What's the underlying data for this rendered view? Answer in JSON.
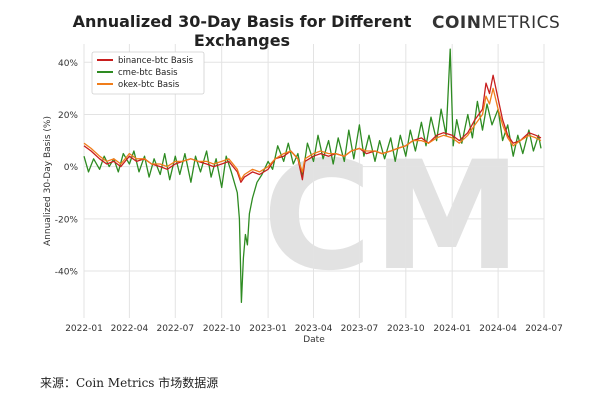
{
  "header": {
    "title": "Annualized 30-Day Basis for Different Exchanges",
    "brand_bold": "COIN",
    "brand_light": "METRICS",
    "watermark": "CM"
  },
  "source_note": "来源：Coin Metrics 市场数据源",
  "chart_data": {
    "type": "line",
    "title": "Annualized 30-Day Basis for Different Exchanges",
    "xlabel": "Date",
    "ylabel": "Annualized 30-Day Basis (%)",
    "xlim": [
      "2022-01-01",
      "2024-07-01"
    ],
    "ylim": [
      -58,
      47
    ],
    "x_ticks": [
      "2022-01",
      "2022-04",
      "2022-07",
      "2022-10",
      "2023-01",
      "2023-04",
      "2023-07",
      "2023-10",
      "2024-01",
      "2024-04",
      "2024-07"
    ],
    "y_ticks": [
      -40,
      -20,
      0,
      20,
      40
    ],
    "y_tick_labels": [
      "-40%",
      "-20%",
      "0%",
      "20%",
      "40%"
    ],
    "grid": true,
    "legend_position": "top-left",
    "series": [
      {
        "name": "binance-btc Basis",
        "color": "#c81e1e",
        "points": [
          [
            "2022-01-01",
            8
          ],
          [
            "2022-01-15",
            6
          ],
          [
            "2022-02-01",
            3
          ],
          [
            "2022-02-15",
            1
          ],
          [
            "2022-03-01",
            2
          ],
          [
            "2022-03-15",
            0
          ],
          [
            "2022-04-01",
            4
          ],
          [
            "2022-04-15",
            2
          ],
          [
            "2022-05-01",
            3
          ],
          [
            "2022-05-15",
            1
          ],
          [
            "2022-06-01",
            0
          ],
          [
            "2022-06-15",
            -1
          ],
          [
            "2022-07-01",
            1
          ],
          [
            "2022-07-15",
            2
          ],
          [
            "2022-08-01",
            3
          ],
          [
            "2022-08-15",
            2
          ],
          [
            "2022-09-01",
            1
          ],
          [
            "2022-09-15",
            0
          ],
          [
            "2022-10-01",
            1
          ],
          [
            "2022-10-15",
            2
          ],
          [
            "2022-11-01",
            -2
          ],
          [
            "2022-11-08",
            -6
          ],
          [
            "2022-11-15",
            -4
          ],
          [
            "2022-12-01",
            -2
          ],
          [
            "2022-12-15",
            -3
          ],
          [
            "2023-01-01",
            -1
          ],
          [
            "2023-01-15",
            3
          ],
          [
            "2023-02-01",
            4
          ],
          [
            "2023-02-15",
            6
          ],
          [
            "2023-03-01",
            3
          ],
          [
            "2023-03-10",
            -5
          ],
          [
            "2023-03-15",
            2
          ],
          [
            "2023-04-01",
            4
          ],
          [
            "2023-04-15",
            5
          ],
          [
            "2023-05-01",
            4
          ],
          [
            "2023-05-15",
            5
          ],
          [
            "2023-06-01",
            4
          ],
          [
            "2023-06-15",
            6
          ],
          [
            "2023-07-01",
            7
          ],
          [
            "2023-07-15",
            5
          ],
          [
            "2023-08-01",
            6
          ],
          [
            "2023-08-15",
            5
          ],
          [
            "2023-09-01",
            6
          ],
          [
            "2023-09-15",
            7
          ],
          [
            "2023-10-01",
            8
          ],
          [
            "2023-10-15",
            10
          ],
          [
            "2023-11-01",
            11
          ],
          [
            "2023-11-15",
            9
          ],
          [
            "2023-12-01",
            12
          ],
          [
            "2023-12-15",
            13
          ],
          [
            "2024-01-01",
            12
          ],
          [
            "2024-01-15",
            10
          ],
          [
            "2024-02-01",
            13
          ],
          [
            "2024-02-15",
            18
          ],
          [
            "2024-03-01",
            22
          ],
          [
            "2024-03-08",
            32
          ],
          [
            "2024-03-15",
            28
          ],
          [
            "2024-03-22",
            35
          ],
          [
            "2024-04-01",
            26
          ],
          [
            "2024-04-10",
            18
          ],
          [
            "2024-04-20",
            12
          ],
          [
            "2024-05-01",
            9
          ],
          [
            "2024-05-15",
            10
          ],
          [
            "2024-06-01",
            13
          ],
          [
            "2024-06-15",
            12
          ],
          [
            "2024-06-25",
            11
          ]
        ]
      },
      {
        "name": "cme-btc Basis",
        "color": "#2e8b22",
        "points": [
          [
            "2022-01-01",
            4
          ],
          [
            "2022-01-10",
            -2
          ],
          [
            "2022-01-20",
            3
          ],
          [
            "2022-02-01",
            -1
          ],
          [
            "2022-02-10",
            4
          ],
          [
            "2022-02-20",
            0
          ],
          [
            "2022-03-01",
            3
          ],
          [
            "2022-03-10",
            -2
          ],
          [
            "2022-03-20",
            5
          ],
          [
            "2022-04-01",
            1
          ],
          [
            "2022-04-10",
            6
          ],
          [
            "2022-04-20",
            -2
          ],
          [
            "2022-05-01",
            4
          ],
          [
            "2022-05-10",
            -4
          ],
          [
            "2022-05-20",
            3
          ],
          [
            "2022-06-01",
            -3
          ],
          [
            "2022-06-10",
            5
          ],
          [
            "2022-06-20",
            -5
          ],
          [
            "2022-07-01",
            4
          ],
          [
            "2022-07-10",
            -3
          ],
          [
            "2022-07-20",
            5
          ],
          [
            "2022-08-01",
            -6
          ],
          [
            "2022-08-10",
            4
          ],
          [
            "2022-08-20",
            -2
          ],
          [
            "2022-09-01",
            6
          ],
          [
            "2022-09-10",
            -4
          ],
          [
            "2022-09-20",
            3
          ],
          [
            "2022-10-01",
            -8
          ],
          [
            "2022-10-10",
            4
          ],
          [
            "2022-10-20",
            -2
          ],
          [
            "2022-11-01",
            -10
          ],
          [
            "2022-11-05",
            -20
          ],
          [
            "2022-11-09",
            -52
          ],
          [
            "2022-11-13",
            -35
          ],
          [
            "2022-11-17",
            -26
          ],
          [
            "2022-11-21",
            -30
          ],
          [
            "2022-11-25",
            -18
          ],
          [
            "2022-12-01",
            -12
          ],
          [
            "2022-12-10",
            -6
          ],
          [
            "2022-12-20",
            -3
          ],
          [
            "2023-01-01",
            2
          ],
          [
            "2023-01-10",
            -1
          ],
          [
            "2023-01-20",
            8
          ],
          [
            "2023-02-01",
            2
          ],
          [
            "2023-02-10",
            9
          ],
          [
            "2023-02-20",
            1
          ],
          [
            "2023-03-01",
            5
          ],
          [
            "2023-03-10",
            -4
          ],
          [
            "2023-03-20",
            9
          ],
          [
            "2023-04-01",
            2
          ],
          [
            "2023-04-10",
            12
          ],
          [
            "2023-04-20",
            3
          ],
          [
            "2023-05-01",
            10
          ],
          [
            "2023-05-10",
            1
          ],
          [
            "2023-05-20",
            11
          ],
          [
            "2023-06-01",
            2
          ],
          [
            "2023-06-10",
            14
          ],
          [
            "2023-06-20",
            3
          ],
          [
            "2023-07-01",
            16
          ],
          [
            "2023-07-10",
            4
          ],
          [
            "2023-07-20",
            12
          ],
          [
            "2023-08-01",
            2
          ],
          [
            "2023-08-10",
            10
          ],
          [
            "2023-08-20",
            3
          ],
          [
            "2023-09-01",
            11
          ],
          [
            "2023-09-10",
            2
          ],
          [
            "2023-09-20",
            12
          ],
          [
            "2023-10-01",
            4
          ],
          [
            "2023-10-10",
            14
          ],
          [
            "2023-10-20",
            6
          ],
          [
            "2023-11-01",
            17
          ],
          [
            "2023-11-10",
            8
          ],
          [
            "2023-11-20",
            19
          ],
          [
            "2023-12-01",
            10
          ],
          [
            "2023-12-10",
            22
          ],
          [
            "2023-12-20",
            12
          ],
          [
            "2023-12-28",
            45
          ],
          [
            "2024-01-03",
            8
          ],
          [
            "2024-01-10",
            18
          ],
          [
            "2024-01-20",
            9
          ],
          [
            "2024-02-01",
            20
          ],
          [
            "2024-02-10",
            11
          ],
          [
            "2024-02-20",
            25
          ],
          [
            "2024-03-01",
            14
          ],
          [
            "2024-03-10",
            24
          ],
          [
            "2024-03-20",
            16
          ],
          [
            "2024-04-01",
            22
          ],
          [
            "2024-04-10",
            10
          ],
          [
            "2024-04-20",
            16
          ],
          [
            "2024-05-01",
            4
          ],
          [
            "2024-05-10",
            12
          ],
          [
            "2024-05-20",
            5
          ],
          [
            "2024-06-01",
            14
          ],
          [
            "2024-06-10",
            6
          ],
          [
            "2024-06-20",
            12
          ],
          [
            "2024-06-25",
            7
          ]
        ]
      },
      {
        "name": "okex-btc Basis",
        "color": "#f07d1a",
        "points": [
          [
            "2022-01-01",
            9
          ],
          [
            "2022-01-15",
            7
          ],
          [
            "2022-02-01",
            4
          ],
          [
            "2022-02-15",
            2
          ],
          [
            "2022-03-01",
            3
          ],
          [
            "2022-03-15",
            1
          ],
          [
            "2022-04-01",
            5
          ],
          [
            "2022-04-15",
            3
          ],
          [
            "2022-05-01",
            3
          ],
          [
            "2022-05-15",
            1
          ],
          [
            "2022-06-01",
            1
          ],
          [
            "2022-06-15",
            0
          ],
          [
            "2022-07-01",
            2
          ],
          [
            "2022-07-15",
            2
          ],
          [
            "2022-08-01",
            3
          ],
          [
            "2022-08-15",
            2
          ],
          [
            "2022-09-01",
            2
          ],
          [
            "2022-09-15",
            1
          ],
          [
            "2022-10-01",
            2
          ],
          [
            "2022-10-15",
            3
          ],
          [
            "2022-11-01",
            -1
          ],
          [
            "2022-11-08",
            -5
          ],
          [
            "2022-11-15",
            -3
          ],
          [
            "2022-12-01",
            -1
          ],
          [
            "2022-12-15",
            -2
          ],
          [
            "2023-01-01",
            0
          ],
          [
            "2023-01-15",
            3
          ],
          [
            "2023-02-01",
            5
          ],
          [
            "2023-02-15",
            6
          ],
          [
            "2023-03-01",
            3
          ],
          [
            "2023-03-10",
            -2
          ],
          [
            "2023-03-15",
            3
          ],
          [
            "2023-04-01",
            5
          ],
          [
            "2023-04-15",
            6
          ],
          [
            "2023-05-01",
            5
          ],
          [
            "2023-05-15",
            5
          ],
          [
            "2023-06-01",
            4
          ],
          [
            "2023-06-15",
            6
          ],
          [
            "2023-07-01",
            7
          ],
          [
            "2023-07-15",
            6
          ],
          [
            "2023-08-01",
            6
          ],
          [
            "2023-08-15",
            5
          ],
          [
            "2023-09-01",
            6
          ],
          [
            "2023-09-15",
            7
          ],
          [
            "2023-10-01",
            8
          ],
          [
            "2023-10-15",
            10
          ],
          [
            "2023-11-01",
            10
          ],
          [
            "2023-11-15",
            9
          ],
          [
            "2023-12-01",
            11
          ],
          [
            "2023-12-15",
            12
          ],
          [
            "2024-01-01",
            11
          ],
          [
            "2024-01-15",
            9
          ],
          [
            "2024-02-01",
            12
          ],
          [
            "2024-02-15",
            16
          ],
          [
            "2024-03-01",
            20
          ],
          [
            "2024-03-08",
            27
          ],
          [
            "2024-03-15",
            24
          ],
          [
            "2024-03-22",
            30
          ],
          [
            "2024-04-01",
            22
          ],
          [
            "2024-04-10",
            16
          ],
          [
            "2024-04-20",
            11
          ],
          [
            "2024-05-01",
            8
          ],
          [
            "2024-05-15",
            10
          ],
          [
            "2024-06-01",
            12
          ],
          [
            "2024-06-15",
            11
          ],
          [
            "2024-06-25",
            10
          ]
        ]
      }
    ]
  }
}
